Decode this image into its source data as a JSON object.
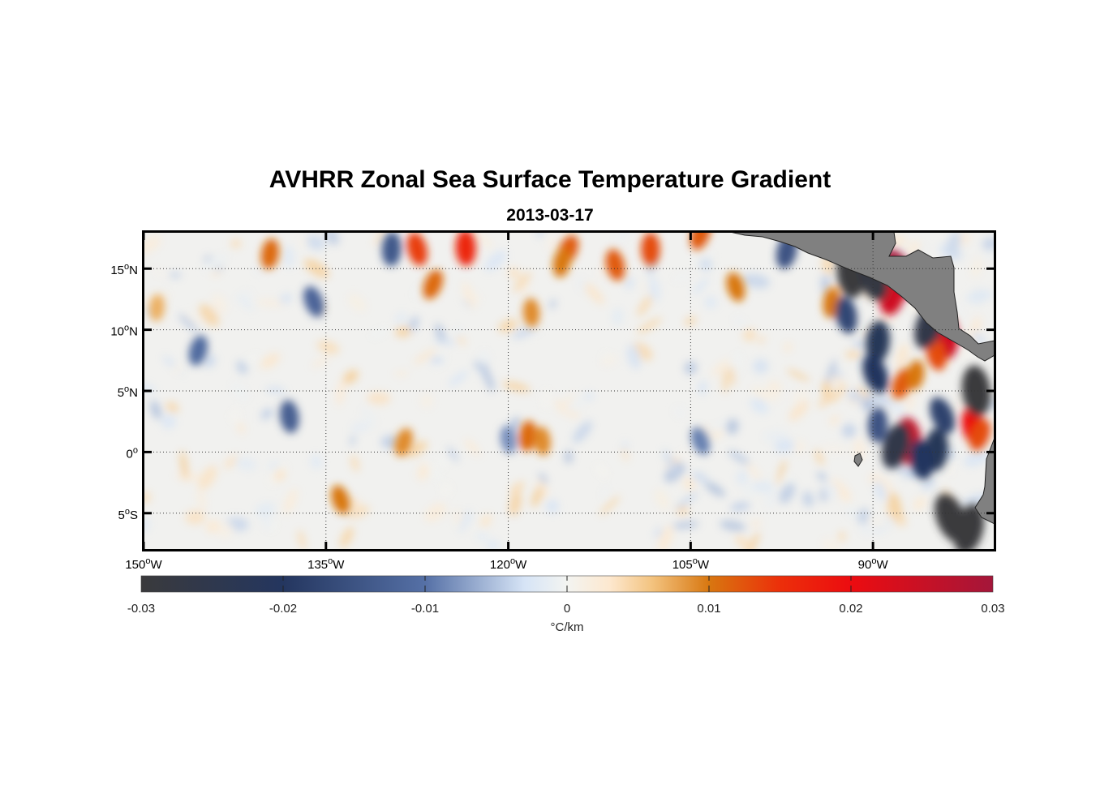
{
  "title": "AVHRR Zonal Sea Surface Temperature Gradient",
  "subtitle": "2013-03-17",
  "map": {
    "lon_range": [
      -150,
      -80
    ],
    "lat_range": [
      -8,
      18
    ],
    "lon_ticks": [
      {
        "value": -150,
        "label": "150",
        "sup": "o",
        "suffix": "W"
      },
      {
        "value": -135,
        "label": "135",
        "sup": "o",
        "suffix": "W"
      },
      {
        "value": -120,
        "label": "120",
        "sup": "o",
        "suffix": "W"
      },
      {
        "value": -105,
        "label": "105",
        "sup": "o",
        "suffix": "W"
      },
      {
        "value": -90,
        "label": "90",
        "sup": "o",
        "suffix": "W"
      }
    ],
    "lat_ticks": [
      {
        "value": 15,
        "label": "15",
        "sup": "o",
        "suffix": "N"
      },
      {
        "value": 10,
        "label": "10",
        "sup": "o",
        "suffix": "N"
      },
      {
        "value": 5,
        "label": "5",
        "sup": "o",
        "suffix": "N"
      },
      {
        "value": 0,
        "label": "0",
        "sup": "o",
        "suffix": ""
      },
      {
        "value": -5,
        "label": "5",
        "sup": "o",
        "suffix": "S"
      }
    ],
    "land_color": "#808080",
    "features": [
      {
        "lon": -87.9,
        "lat": 14.6,
        "value": 0.03
      },
      {
        "lon": -88.4,
        "lat": 13.0,
        "value": 0.024
      },
      {
        "lon": -84.0,
        "lat": 9.4,
        "value": 0.024
      },
      {
        "lon": -84.8,
        "lat": 8.0,
        "value": 0.013
      },
      {
        "lon": -87.6,
        "lat": 5.6,
        "value": 0.012
      },
      {
        "lon": -86.5,
        "lat": 6.3,
        "value": 0.01
      },
      {
        "lon": -87.1,
        "lat": 0.9,
        "value": 0.026
      },
      {
        "lon": -81.7,
        "lat": 2.0,
        "value": 0.02
      },
      {
        "lon": -81.2,
        "lat": 1.4,
        "value": 0.013
      },
      {
        "lon": -93.4,
        "lat": 12.2,
        "value": 0.01
      },
      {
        "lon": -91.8,
        "lat": 14.7,
        "value": -0.03
      },
      {
        "lon": -90.0,
        "lat": 14.3,
        "value": -0.028
      },
      {
        "lon": -85.4,
        "lat": 10.3,
        "value": -0.026
      },
      {
        "lon": -89.6,
        "lat": 9.0,
        "value": -0.022
      },
      {
        "lon": -81.5,
        "lat": 5.0,
        "value": -0.03
      },
      {
        "lon": -89.8,
        "lat": 6.4,
        "value": -0.02
      },
      {
        "lon": -88.1,
        "lat": 0.5,
        "value": -0.026
      },
      {
        "lon": -84.8,
        "lat": 0.2,
        "value": -0.022
      },
      {
        "lon": -86.0,
        "lat": -0.6,
        "value": -0.02
      },
      {
        "lon": -83.6,
        "lat": -5.4,
        "value": -0.03
      },
      {
        "lon": -82.1,
        "lat": -6.3,
        "value": -0.03
      },
      {
        "lon": -89.6,
        "lat": 2.2,
        "value": -0.015
      },
      {
        "lon": -92.2,
        "lat": 11.2,
        "value": -0.017
      },
      {
        "lon": -84.3,
        "lat": 3.0,
        "value": -0.018
      },
      {
        "lon": -97.1,
        "lat": 16.4,
        "value": -0.015
      },
      {
        "lon": -108.3,
        "lat": 16.6,
        "value": 0.013
      },
      {
        "lon": -111.2,
        "lat": 15.3,
        "value": 0.012
      },
      {
        "lon": -115.1,
        "lat": 16.5,
        "value": 0.012
      },
      {
        "lon": -115.6,
        "lat": 15.5,
        "value": 0.01
      },
      {
        "lon": -123.5,
        "lat": 16.7,
        "value": 0.016
      },
      {
        "lon": -127.5,
        "lat": 16.6,
        "value": 0.014
      },
      {
        "lon": -126.2,
        "lat": 13.7,
        "value": 0.011
      },
      {
        "lon": -139.6,
        "lat": 16.2,
        "value": 0.011
      },
      {
        "lon": -118.1,
        "lat": 11.4,
        "value": 0.009
      },
      {
        "lon": -101.3,
        "lat": 13.5,
        "value": 0.01
      },
      {
        "lon": -104.2,
        "lat": 17.8,
        "value": 0.012
      },
      {
        "lon": -118.4,
        "lat": 1.3,
        "value": 0.011
      },
      {
        "lon": -117.2,
        "lat": 0.9,
        "value": 0.009
      },
      {
        "lon": -133.8,
        "lat": -3.9,
        "value": 0.01
      },
      {
        "lon": -128.6,
        "lat": 0.8,
        "value": 0.009
      },
      {
        "lon": -148.9,
        "lat": 11.8,
        "value": 0.007
      },
      {
        "lon": -138.0,
        "lat": 2.9,
        "value": -0.013
      },
      {
        "lon": -136.0,
        "lat": 12.3,
        "value": -0.012
      },
      {
        "lon": -145.5,
        "lat": 8.3,
        "value": -0.011
      },
      {
        "lon": -129.6,
        "lat": 16.6,
        "value": -0.014
      },
      {
        "lon": -120.0,
        "lat": 1.0,
        "value": -0.008
      },
      {
        "lon": -104.2,
        "lat": 0.9,
        "value": -0.009
      }
    ]
  },
  "colorbar": {
    "min": -0.03,
    "max": 0.03,
    "ticks": [
      "-0.03",
      "-0.02",
      "-0.01",
      "0",
      "0.01",
      "0.02",
      "0.03"
    ],
    "tick_values": [
      -0.03,
      -0.02,
      -0.01,
      0,
      0.01,
      0.02,
      0.03
    ],
    "label": "°C/km",
    "stops": [
      {
        "value": -0.03,
        "color": "#3a3a3c"
      },
      {
        "value": -0.02,
        "color": "#24365f"
      },
      {
        "value": -0.01,
        "color": "#5570a6"
      },
      {
        "value": -0.003,
        "color": "#d6e4f6"
      },
      {
        "value": 0.0,
        "color": "#f3f4f1"
      },
      {
        "value": 0.003,
        "color": "#fde8cf"
      },
      {
        "value": 0.006,
        "color": "#f3c37f"
      },
      {
        "value": 0.01,
        "color": "#d87710"
      },
      {
        "value": 0.015,
        "color": "#ec2f0a"
      },
      {
        "value": 0.02,
        "color": "#ec0c10"
      },
      {
        "value": 0.03,
        "color": "#a4163a"
      }
    ]
  }
}
